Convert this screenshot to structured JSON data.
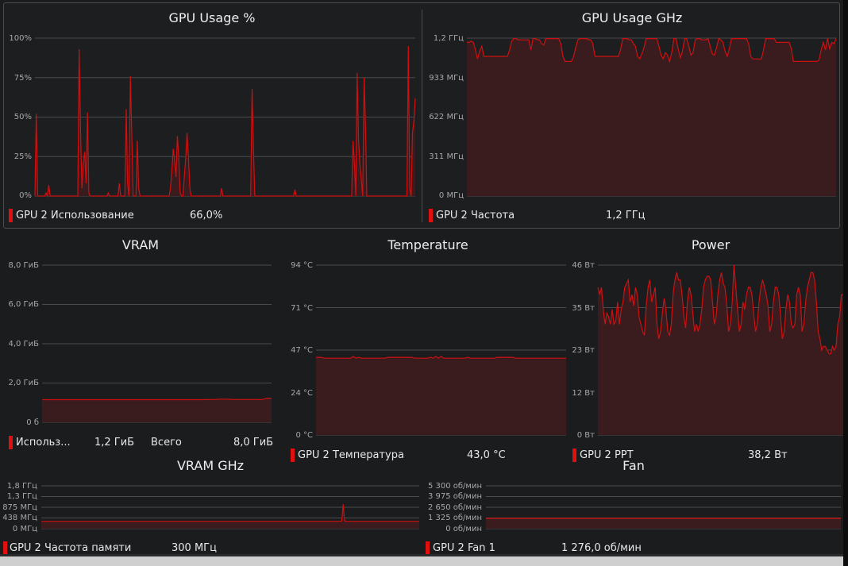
{
  "colors": {
    "line": "#d01010",
    "fill": "#3a1b1e",
    "grid": "#4a4b4e",
    "swatch": "#e01010"
  },
  "gpu_usage": {
    "title": "GPU Usage %",
    "ticks": [
      "100%",
      "75%",
      "50%",
      "25%",
      "0%"
    ],
    "legend_label": "GPU 2 Использование",
    "legend_value": "66,0%",
    "ylim": [
      0,
      100
    ],
    "values": [
      0,
      52,
      0,
      0,
      0,
      0,
      0,
      0,
      2,
      0,
      7,
      0,
      0,
      0,
      0,
      0,
      0,
      0,
      0,
      0,
      0,
      0,
      0,
      0,
      0,
      0,
      0,
      0,
      0,
      0,
      0,
      0,
      93,
      40,
      5,
      20,
      28,
      8,
      53,
      2,
      0,
      0,
      0,
      0,
      0,
      0,
      0,
      0,
      0,
      0,
      0,
      0,
      0,
      2,
      0,
      0,
      0,
      0,
      0,
      0,
      0,
      8,
      0,
      0,
      0,
      0,
      55,
      8,
      0,
      76,
      40,
      0,
      0,
      0,
      35,
      5,
      0,
      0,
      0,
      0,
      0,
      0,
      0,
      0,
      0,
      0,
      0,
      0,
      0,
      0,
      0,
      0,
      0,
      0,
      0,
      0,
      0,
      0,
      5,
      16,
      30,
      22,
      12,
      38,
      25,
      2,
      0,
      0,
      12,
      24,
      40,
      25,
      5,
      0,
      0,
      0,
      0,
      0,
      0,
      0,
      0,
      0,
      0,
      0,
      0,
      0,
      0,
      0,
      0,
      0,
      0,
      0,
      0,
      0,
      0,
      5,
      0,
      0,
      0,
      0,
      0,
      0,
      0,
      0,
      0,
      0,
      0,
      0,
      0,
      0,
      0,
      0,
      0,
      0,
      0,
      0,
      0,
      68,
      30,
      0,
      0,
      0,
      0,
      0,
      0,
      0,
      0,
      0,
      0,
      0,
      0,
      0,
      0,
      0,
      0,
      0,
      0,
      0,
      0,
      0,
      0,
      0,
      0,
      0,
      0,
      0,
      0,
      0,
      4,
      0,
      0,
      0,
      0,
      0,
      0,
      0,
      0,
      0,
      0,
      0,
      0,
      0,
      0,
      0,
      0,
      0,
      0,
      0,
      0,
      0,
      0,
      0,
      0,
      0,
      0,
      0,
      0,
      0,
      0,
      0,
      0,
      0,
      0,
      0,
      0,
      0,
      0,
      0,
      0,
      0,
      35,
      20,
      0,
      78,
      35,
      20,
      10,
      0,
      75,
      45,
      0,
      0,
      0,
      0,
      0,
      0,
      0,
      0,
      0,
      0,
      0,
      0,
      0,
      0,
      0,
      0,
      0,
      0,
      0,
      0,
      0,
      0,
      0,
      0,
      0,
      0,
      0,
      0,
      0,
      0,
      95,
      5,
      0,
      40,
      48,
      62
    ]
  },
  "gpu_clock": {
    "title": "GPU Usage GHz",
    "ticks": [
      "1,2 ГГц",
      "933 МГц",
      "622 МГц",
      "311 МГц",
      "0 МГц"
    ],
    "legend_label": "GPU 2 Частота",
    "legend_value": "1,2 ГГц",
    "ylim": [
      0,
      1244
    ],
    "values": [
      1210,
      1210,
      1220,
      1210,
      1150,
      1080,
      1140,
      1180,
      1100,
      1100,
      1100,
      1100,
      1100,
      1100,
      1100,
      1100,
      1100,
      1100,
      1100,
      1100,
      1150,
      1220,
      1240,
      1240,
      1230,
      1230,
      1230,
      1230,
      1230,
      1230,
      1150,
      1240,
      1240,
      1230,
      1230,
      1200,
      1190,
      1240,
      1240,
      1240,
      1240,
      1240,
      1240,
      1240,
      1200,
      1100,
      1060,
      1060,
      1060,
      1060,
      1100,
      1170,
      1230,
      1240,
      1240,
      1240,
      1240,
      1230,
      1230,
      1200,
      1100,
      1100,
      1100,
      1100,
      1100,
      1100,
      1100,
      1100,
      1100,
      1100,
      1100,
      1100,
      1150,
      1240,
      1240,
      1240,
      1230,
      1230,
      1200,
      1180,
      1100,
      1080,
      1120,
      1170,
      1240,
      1240,
      1240,
      1240,
      1240,
      1240,
      1180,
      1110,
      1080,
      1130,
      1110,
      1060,
      1130,
      1240,
      1240,
      1160,
      1090,
      1140,
      1240,
      1240,
      1180,
      1110,
      1130,
      1230,
      1240,
      1240,
      1230,
      1230,
      1230,
      1240,
      1180,
      1120,
      1110,
      1170,
      1240,
      1230,
      1210,
      1140,
      1100,
      1160,
      1240,
      1240,
      1240,
      1240,
      1240,
      1240,
      1240,
      1240,
      1200,
      1100,
      1080,
      1080,
      1080,
      1080,
      1080,
      1150,
      1240,
      1240,
      1240,
      1240,
      1240,
      1210,
      1210,
      1210,
      1210,
      1210,
      1210,
      1210,
      1160,
      1060,
      1060,
      1060,
      1060,
      1060,
      1060,
      1060,
      1060,
      1060,
      1060,
      1060,
      1060,
      1070,
      1150,
      1210,
      1150,
      1240,
      1160,
      1210,
      1200,
      1240
    ]
  },
  "vram": {
    "title": "VRAM",
    "ticks": [
      "8,0 ГиБ",
      "6,0 ГиБ",
      "4,0 ГиБ",
      "2,0 ГиБ",
      "0 б"
    ],
    "legend_label": "Использ...",
    "legend_value": "1,2 ГиБ",
    "legend_total_label": "Всего",
    "legend_total_value": "8,0 ГиБ",
    "ylim": [
      0,
      8
    ],
    "values": [
      1.15,
      1.15,
      1.15,
      1.15,
      1.15,
      1.15,
      1.15,
      1.15,
      1.15,
      1.15,
      1.15,
      1.15,
      1.15,
      1.15,
      1.15,
      1.15,
      1.15,
      1.15,
      1.15,
      1.15,
      1.15,
      1.15,
      1.15,
      1.15,
      1.15,
      1.15,
      1.15,
      1.15,
      1.15,
      1.15,
      1.15,
      1.15,
      1.15,
      1.15,
      1.15,
      1.16,
      1.16,
      1.16,
      1.18,
      1.18,
      1.17,
      1.16,
      1.16,
      1.16,
      1.16,
      1.16,
      1.16,
      1.16,
      1.23,
      1.23
    ]
  },
  "temperature": {
    "title": "Temperature",
    "ticks": [
      "94 °C",
      "71 °C",
      "47 °C",
      "24 °C",
      "0 °C"
    ],
    "legend_label": "GPU 2 Температура",
    "legend_value": "43,0 °C",
    "ylim": [
      0,
      94
    ],
    "values": [
      43,
      43,
      43,
      42.5,
      42.5,
      42.5,
      42.5,
      42.5,
      42.5,
      42.5,
      42.5,
      42.5,
      42.5,
      42.5,
      43.5,
      42.5,
      43,
      42.5,
      42.5,
      42.5,
      42.5,
      42.5,
      42.5,
      42.5,
      42.5,
      42.5,
      42.5,
      43,
      43,
      43,
      43,
      43,
      43,
      43,
      43,
      43,
      43,
      42.5,
      42.5,
      42.5,
      42.5,
      42.5,
      42.5,
      43,
      42.5,
      43.5,
      42.5,
      43.5,
      42.5,
      42.5,
      42.5,
      42.5,
      42.5,
      42.5,
      42.5,
      42.5,
      42.5,
      43,
      42.5,
      42.5,
      42.5,
      42.5,
      42.5,
      42.5,
      42.5,
      42.5,
      42.5,
      42.5,
      43,
      43,
      43,
      43,
      43,
      43,
      43,
      42.5,
      42.5,
      42.5,
      42.5,
      42.5,
      42.5,
      42.5,
      42.5,
      42.5,
      42.5,
      42.5,
      42.5,
      42.5,
      42.5,
      42.5,
      42.5,
      42.5,
      42.5,
      42.5,
      42.5
    ]
  },
  "power": {
    "title": "Power",
    "ticks": [
      "46 Вт",
      "35 Вт",
      "23 Вт",
      "12 Вт",
      "0 Вт"
    ],
    "legend_label": "GPU 2 PPT",
    "legend_value": "38,2 Вт",
    "ylim": [
      0,
      46
    ],
    "values": [
      40,
      38,
      40,
      34,
      30,
      33,
      32,
      30,
      34,
      30,
      31,
      36,
      30,
      34,
      36,
      40,
      41,
      42,
      36,
      38,
      35,
      40,
      38,
      32,
      30,
      28,
      27,
      35,
      40,
      42,
      36,
      38,
      40,
      30,
      26,
      28,
      33,
      37,
      34,
      28,
      27,
      30,
      38,
      42,
      44,
      42,
      42,
      38,
      32,
      29,
      36,
      40,
      38,
      33,
      28,
      30,
      28,
      30,
      34,
      40,
      42,
      43,
      43,
      42,
      36,
      30,
      32,
      38,
      42,
      44,
      41,
      40,
      35,
      28,
      30,
      36,
      46,
      40,
      34,
      28,
      30,
      36,
      34,
      38,
      40,
      40,
      38,
      33,
      28,
      30,
      36,
      40,
      42,
      40,
      38,
      35,
      28,
      30,
      36,
      40,
      40,
      38,
      32,
      26,
      28,
      34,
      38,
      36,
      30,
      29,
      30,
      38,
      40,
      38,
      28,
      30,
      36,
      40,
      42,
      44,
      44,
      42,
      36,
      28,
      26,
      23,
      24,
      24,
      23,
      22,
      22,
      24,
      23,
      24,
      30,
      32,
      38,
      38
    ]
  },
  "vram_clock": {
    "title": "VRAM GHz",
    "ticks": [
      "1,8 ГГц",
      "1,3 ГГц",
      "875 МГц",
      "438 МГц",
      "0 МГц"
    ],
    "legend_label": "GPU 2 Частота памяти",
    "legend_value": "300 МГц",
    "ylim": [
      0,
      1750
    ],
    "values": [
      300,
      300,
      300,
      300,
      300,
      300,
      300,
      300,
      300,
      300,
      300,
      300,
      300,
      300,
      300,
      300,
      300,
      300,
      300,
      300,
      300,
      300,
      300,
      300,
      300,
      300,
      300,
      300,
      300,
      300,
      300,
      300,
      300,
      300,
      300,
      300,
      300,
      300,
      300,
      300,
      300,
      300,
      300,
      300,
      300,
      300,
      300,
      300,
      300,
      300,
      300,
      300,
      300,
      300,
      300,
      300,
      300,
      300,
      300,
      300,
      300,
      300,
      300,
      300,
      300,
      300,
      300,
      300,
      300,
      300,
      300,
      300,
      300,
      300,
      300,
      300,
      300,
      300,
      300,
      300,
      300,
      300,
      300,
      300,
      300,
      300,
      300,
      300,
      300,
      300,
      300,
      300,
      300,
      300,
      300,
      300,
      300,
      300,
      300,
      300,
      300,
      300,
      300,
      300,
      300,
      300,
      300,
      300,
      300,
      300,
      300,
      300,
      300,
      300,
      300,
      300,
      300,
      300,
      300,
      300,
      300,
      300,
      300,
      300,
      300,
      300,
      300,
      300,
      300,
      300,
      300,
      300,
      300,
      300,
      300,
      300,
      300,
      300,
      300,
      300,
      300,
      300,
      300,
      300,
      300,
      300,
      300,
      300,
      300,
      300,
      300,
      300,
      300,
      300,
      300,
      300,
      300,
      300,
      300,
      300,
      300,
      300,
      300,
      300,
      300,
      300,
      300,
      300,
      300,
      300,
      300,
      300,
      300,
      300,
      300,
      300,
      300,
      300,
      300,
      300,
      300,
      300,
      300,
      300,
      300,
      300,
      300,
      300,
      300,
      300,
      300,
      300,
      300,
      300,
      300,
      300,
      300,
      300,
      300,
      300,
      300,
      300,
      300,
      300,
      300,
      300,
      300,
      300,
      300,
      300,
      300,
      300,
      300,
      300,
      300,
      300,
      300,
      300,
      300,
      300,
      300,
      300,
      300,
      300,
      300,
      300,
      300,
      300,
      300,
      300,
      300,
      300,
      300,
      300,
      300,
      300,
      300,
      300,
      300,
      300,
      300,
      300,
      300,
      300,
      300,
      300,
      300,
      300,
      300,
      300,
      300,
      300,
      300,
      300,
      300,
      300,
      300,
      300,
      300,
      300,
      300,
      300,
      300,
      300,
      300,
      300,
      300,
      300,
      300,
      300,
      300,
      300,
      300,
      300,
      300,
      300,
      300,
      300,
      300,
      300,
      300,
      300,
      300,
      300,
      300,
      300,
      300,
      300,
      300,
      300,
      300,
      300,
      300,
      300,
      300,
      300,
      300,
      300,
      300,
      300,
      300,
      300,
      300,
      300,
      300,
      300,
      300,
      300,
      300,
      300,
      300,
      300,
      300,
      300,
      300,
      300,
      300,
      300,
      300,
      300,
      300,
      300,
      300,
      300,
      300,
      300,
      300,
      300,
      300,
      300,
      300,
      300,
      300,
      300,
      300,
      300,
      300,
      300,
      300,
      300,
      300,
      300,
      300,
      300,
      300,
      300,
      300,
      300,
      300,
      300,
      300,
      300,
      300,
      300,
      300,
      300,
      300,
      300,
      300,
      300,
      300,
      300,
      300,
      300,
      300,
      300,
      300,
      300,
      300,
      300,
      300,
      300,
      300,
      300,
      300,
      300,
      300,
      300,
      300,
      300,
      300,
      300,
      300,
      300,
      300,
      300,
      300,
      300,
      600,
      1000,
      600,
      300,
      300,
      300,
      300,
      300,
      300,
      300,
      300,
      300,
      300,
      300,
      300,
      300,
      300,
      300,
      300,
      300,
      300,
      300,
      300,
      300,
      300,
      300,
      300,
      300,
      300,
      300,
      300,
      300,
      300,
      300,
      300,
      300,
      300,
      300,
      300,
      300,
      300,
      300,
      300,
      300,
      300,
      300,
      300,
      300,
      300,
      300,
      300,
      300,
      300,
      300,
      300,
      300,
      300,
      300,
      300,
      300,
      300,
      300,
      300,
      300,
      300,
      300,
      300,
      300,
      300,
      300,
      300,
      300,
      300,
      300,
      300,
      300,
      300,
      300,
      300,
      300,
      300,
      300,
      300,
      300,
      300,
      300,
      300,
      300,
      300,
      300,
      300,
      300,
      300,
      300,
      300,
      300,
      300,
      300,
      300,
      300
    ]
  },
  "fan": {
    "title": "Fan",
    "ticks": [
      "5 300 об/мин",
      "3 975 об/мин",
      "2 650 об/мин",
      "1 325 об/мин",
      "0 об/мин"
    ],
    "legend_label": "GPU 2 Fan 1",
    "legend_value": "1 276,0 об/мин",
    "ylim": [
      0,
      5300
    ],
    "values": [
      1276,
      1276,
      1276,
      1276,
      1276,
      1276,
      1276,
      1276,
      1276,
      1276,
      1276,
      1276,
      1276,
      1276,
      1276,
      1276,
      1276,
      1276,
      1276,
      1276
    ]
  }
}
